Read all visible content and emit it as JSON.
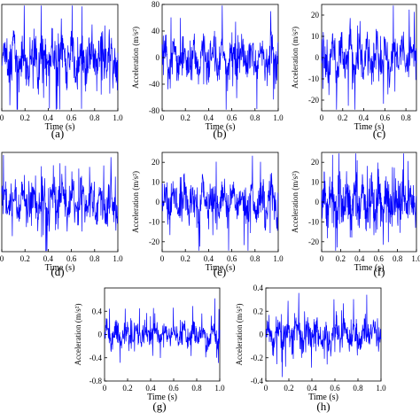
{
  "chart_data": [
    {
      "panel": "a",
      "type": "line",
      "color": "#0000ff",
      "caption": "(a)",
      "xlabel": "Time (s)",
      "ylabel": "",
      "xlim": [
        0,
        1.0
      ],
      "ylim": [
        -40,
        40
      ],
      "xticks": [
        "0",
        "0.2",
        "0.4",
        "0.6",
        "0.8",
        "1.0"
      ],
      "yticks": [],
      "signal_amplitude": 35,
      "n_samples": 420
    },
    {
      "panel": "b",
      "type": "line",
      "color": "#0000ff",
      "caption": "(b)",
      "xlabel": "Time (s)",
      "ylabel": "Acceleration (m/s²)",
      "xlim": [
        0,
        1.0
      ],
      "ylim": [
        -80,
        80
      ],
      "xticks": [
        "0",
        "0.2",
        "0.4",
        "0.6",
        "0.8",
        "1.0"
      ],
      "yticks": [
        "-80",
        "-40",
        "0",
        "40",
        "80"
      ],
      "signal_amplitude": 60,
      "n_samples": 420
    },
    {
      "panel": "c",
      "type": "line",
      "color": "#0000ff",
      "caption": "(c)",
      "xlabel": "Time (s)",
      "ylabel": "Acceleration (m/s²)",
      "xlim": [
        0,
        0.9
      ],
      "ylim": [
        -25,
        25
      ],
      "xticks": [
        "0",
        "0.2",
        "0.4",
        "0.6",
        "0.8"
      ],
      "yticks": [
        "-20",
        "-10",
        "0",
        "10",
        "20"
      ],
      "signal_amplitude": 22,
      "n_samples": 300
    },
    {
      "panel": "d",
      "type": "line",
      "color": "#0000ff",
      "caption": "(d)",
      "xlabel": "Time (s)",
      "ylabel": "",
      "xlim": [
        0,
        1.0
      ],
      "ylim": [
        -25,
        25
      ],
      "xticks": [
        "0",
        "0.2",
        "0.4",
        "0.6",
        "0.8",
        "1.0"
      ],
      "yticks": [],
      "signal_amplitude": 20,
      "n_samples": 420
    },
    {
      "panel": "e",
      "type": "line",
      "color": "#0000ff",
      "caption": "(e)",
      "xlabel": "Time (s)",
      "ylabel": "Acceleration (m/s²)",
      "xlim": [
        0,
        1.0
      ],
      "ylim": [
        -25,
        25
      ],
      "xticks": [
        "0",
        "0.2",
        "0.4",
        "0.6",
        "0.8",
        "1.0"
      ],
      "yticks": [
        "-20",
        "-10",
        "0",
        "10",
        "20"
      ],
      "signal_amplitude": 20,
      "n_samples": 420
    },
    {
      "panel": "f",
      "type": "line",
      "color": "#0000ff",
      "caption": "(f)",
      "xlabel": "Time (s)",
      "ylabel": "Acceleration (m/s²)",
      "xlim": [
        0,
        1.0
      ],
      "ylim": [
        -25,
        25
      ],
      "xticks": [
        "0",
        "0.2",
        "0.4",
        "0.6",
        "0.8",
        "1.0"
      ],
      "yticks": [
        "-20",
        "-10",
        "0",
        "10",
        "20"
      ],
      "signal_amplitude": 21,
      "n_samples": 420
    },
    {
      "panel": "g",
      "type": "line",
      "color": "#0000ff",
      "caption": "(g)",
      "xlabel": "Time (s)",
      "ylabel": "Acceleration (m/s²)",
      "xlim": [
        0,
        1.0
      ],
      "ylim": [
        -0.8,
        0.8
      ],
      "xticks": [
        "0",
        "0.2",
        "0.4",
        "0.6",
        "0.8",
        "1.0"
      ],
      "yticks": [
        "-0.8",
        "-0.4",
        "0",
        "0.4"
      ],
      "signal_amplitude": 0.4,
      "n_samples": 420
    },
    {
      "panel": "h",
      "type": "line",
      "color": "#0000ff",
      "caption": "(h)",
      "xlabel": "Time (s)",
      "ylabel": "Acceleration (m/s²)",
      "xlim": [
        0,
        1.0
      ],
      "ylim": [
        -0.4,
        0.4
      ],
      "xticks": [
        "0",
        "0.2",
        "0.4",
        "0.6",
        "0.8",
        "1.0"
      ],
      "yticks": [
        "-0.4",
        "-0.2",
        "0",
        "0.2",
        "0.4"
      ],
      "signal_amplitude": 0.25,
      "n_samples": 420
    }
  ]
}
